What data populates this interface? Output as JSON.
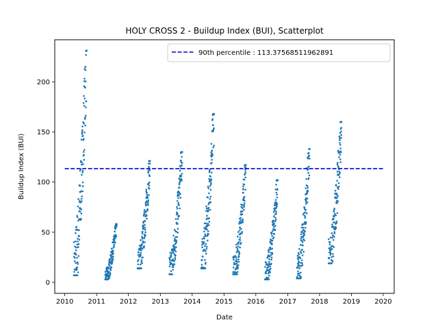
{
  "chart_data": {
    "type": "scatter",
    "title": "HOLY CROSS 2 - Buildup Index (BUI), Scatterplot",
    "xlabel": "Date",
    "ylabel": "Buildup Index (BUI)",
    "x_ticks": [
      "2010",
      "2011",
      "2012",
      "2013",
      "2014",
      "2015",
      "2016",
      "2017",
      "2018",
      "2019",
      "2020"
    ],
    "y_ticks": [
      0,
      50,
      100,
      150,
      200
    ],
    "xlim": [
      "2009-09-08",
      "2020-05-06"
    ],
    "ylim": [
      -11,
      242
    ],
    "grid": false,
    "legend_position": "top-right",
    "point_color": "#1f77b4",
    "reference_line": {
      "label": "90th percentile : 113.37568511962891",
      "value": 113.37568511962891,
      "color": "#0000cc",
      "style": "dashed"
    },
    "seasons": [
      {
        "start": "2010-04-15",
        "end": "2010-09-10",
        "min": 7,
        "max": 231
      },
      {
        "start": "2011-04-10",
        "end": "2011-08-20",
        "min": 3,
        "max": 58
      },
      {
        "start": "2012-04-15",
        "end": "2012-09-05",
        "min": 14,
        "max": 121
      },
      {
        "start": "2013-04-15",
        "end": "2013-09-10",
        "min": 8,
        "max": 130
      },
      {
        "start": "2014-04-15",
        "end": "2014-09-10",
        "min": 14,
        "max": 168
      },
      {
        "start": "2015-04-15",
        "end": "2015-09-10",
        "min": 8,
        "max": 117
      },
      {
        "start": "2016-04-15",
        "end": "2016-09-10",
        "min": 3,
        "max": 102
      },
      {
        "start": "2017-04-15",
        "end": "2017-09-10",
        "min": 4,
        "max": 133
      },
      {
        "start": "2018-04-15",
        "end": "2018-09-10",
        "min": 19,
        "max": 160
      }
    ]
  }
}
